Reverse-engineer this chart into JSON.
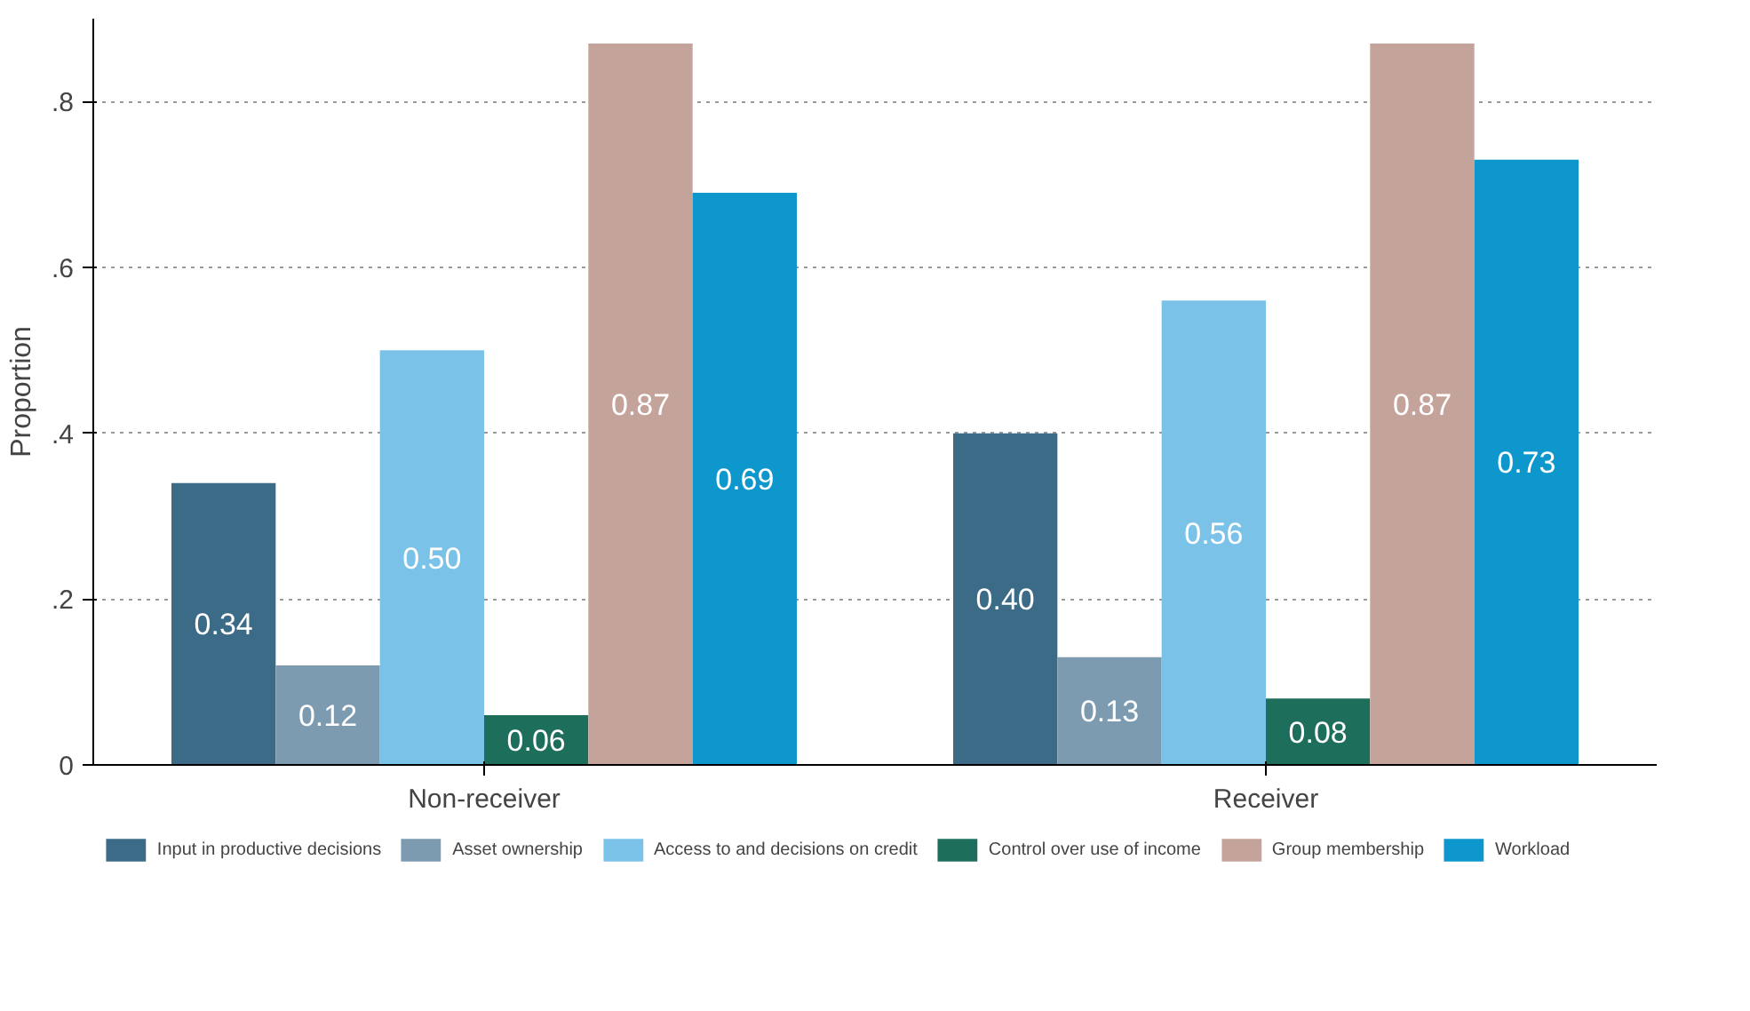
{
  "chart_data": {
    "type": "bar",
    "ylabel": "Proportion",
    "categories": [
      "Non-receiver",
      "Receiver"
    ],
    "series": [
      {
        "name": "Input in productive decisions",
        "color": "#3b6b86",
        "values": [
          0.34,
          0.4
        ],
        "value_labels": [
          "0.34",
          "0.40"
        ]
      },
      {
        "name": "Asset ownership",
        "color": "#7d9bb0",
        "values": [
          0.12,
          0.13
        ],
        "value_labels": [
          "0.12",
          "0.13"
        ]
      },
      {
        "name": "Access to and decisions on credit",
        "color": "#7bc2e8",
        "values": [
          0.5,
          0.56
        ],
        "value_labels": [
          "0.50",
          "0.56"
        ]
      },
      {
        "name": "Control over use of income",
        "color": "#1e6e5c",
        "values": [
          0.06,
          0.08
        ],
        "value_labels": [
          "0.06",
          "0.08"
        ]
      },
      {
        "name": "Group membership",
        "color": "#c4a39a",
        "values": [
          0.87,
          0.87
        ],
        "value_labels": [
          "0.87",
          "0.87"
        ]
      },
      {
        "name": "Workload",
        "color": "#0d97cc",
        "values": [
          0.69,
          0.73
        ],
        "value_labels": [
          "0.69",
          "0.73"
        ]
      }
    ],
    "ylim": [
      0,
      0.9
    ],
    "yticks": [
      0,
      {
        "value": 0.2,
        "label": ".2"
      },
      {
        "value": 0.4,
        "label": ".4"
      },
      {
        "value": 0.6,
        "label": ".6"
      },
      {
        "value": 0.8,
        "label": ".8"
      }
    ],
    "grid": "y",
    "legend": "bottom"
  }
}
